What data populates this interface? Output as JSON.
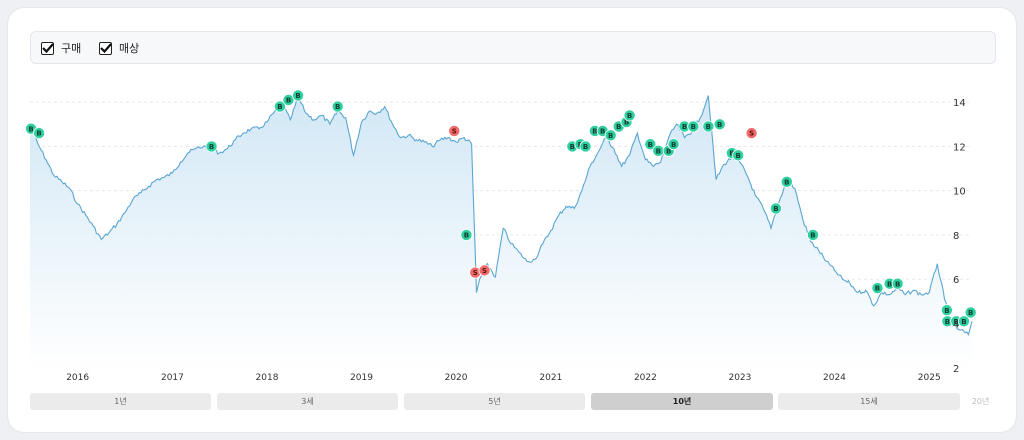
{
  "legend": {
    "items": [
      {
        "label": "구매",
        "checked": true
      },
      {
        "label": "매상",
        "checked": true
      }
    ]
  },
  "chart_data": {
    "type": "area",
    "x_range": [
      "2015-07-01",
      "2025-06-15"
    ],
    "ylim": [
      1.9,
      15.0
    ],
    "y_ticks": [
      2,
      4,
      6,
      8,
      10,
      12,
      14
    ],
    "x_tick_labels": [
      {
        "label": "2016",
        "date": "2016-01-01"
      },
      {
        "label": "2017",
        "date": "2017-01-01"
      },
      {
        "label": "2018",
        "date": "2018-01-01"
      },
      {
        "label": "2019",
        "date": "2019-01-01"
      },
      {
        "label": "2020",
        "date": "2020-01-01"
      },
      {
        "label": "2021",
        "date": "2021-01-01"
      },
      {
        "label": "2022",
        "date": "2022-01-01"
      },
      {
        "label": "2023",
        "date": "2023-01-01"
      },
      {
        "label": "2024",
        "date": "2024-01-01"
      },
      {
        "label": "2025",
        "date": "2025-01-01"
      }
    ],
    "grid": true,
    "series": [
      {
        "color": "#5aa6d2",
        "points": [
          [
            "2015-07-01",
            12.9
          ],
          [
            "2015-08-01",
            12.1
          ],
          [
            "2015-09-01",
            11.4
          ],
          [
            "2015-10-01",
            10.7
          ],
          [
            "2015-11-01",
            10.4
          ],
          [
            "2015-12-01",
            10.1
          ],
          [
            "2016-01-01",
            9.4
          ],
          [
            "2016-02-01",
            8.9
          ],
          [
            "2016-03-01",
            8.4
          ],
          [
            "2016-04-01",
            7.8
          ],
          [
            "2016-05-01",
            8.1
          ],
          [
            "2016-06-01",
            8.5
          ],
          [
            "2016-07-01",
            9.0
          ],
          [
            "2016-08-01",
            9.6
          ],
          [
            "2016-09-01",
            9.9
          ],
          [
            "2016-10-01",
            10.2
          ],
          [
            "2016-11-01",
            10.5
          ],
          [
            "2016-12-01",
            10.6
          ],
          [
            "2017-01-01",
            10.8
          ],
          [
            "2017-02-01",
            11.3
          ],
          [
            "2017-03-01",
            11.7
          ],
          [
            "2017-04-01",
            11.9
          ],
          [
            "2017-05-01",
            12.0
          ],
          [
            "2017-06-01",
            11.9
          ],
          [
            "2017-07-01",
            11.7
          ],
          [
            "2017-08-01",
            11.9
          ],
          [
            "2017-09-01",
            12.3
          ],
          [
            "2017-10-01",
            12.6
          ],
          [
            "2017-11-01",
            12.8
          ],
          [
            "2017-12-01",
            12.8
          ],
          [
            "2018-01-01",
            13.1
          ],
          [
            "2018-02-01",
            13.6
          ],
          [
            "2018-03-01",
            13.9
          ],
          [
            "2018-04-01",
            13.2
          ],
          [
            "2018-05-01",
            14.2
          ],
          [
            "2018-06-01",
            13.5
          ],
          [
            "2018-07-01",
            13.2
          ],
          [
            "2018-08-01",
            13.4
          ],
          [
            "2018-09-01",
            13.0
          ],
          [
            "2018-10-01",
            13.6
          ],
          [
            "2018-11-01",
            13.3
          ],
          [
            "2018-12-01",
            11.6
          ],
          [
            "2019-01-01",
            13.1
          ],
          [
            "2019-02-01",
            13.6
          ],
          [
            "2019-03-01",
            13.5
          ],
          [
            "2019-04-01",
            13.8
          ],
          [
            "2019-05-01",
            13.0
          ],
          [
            "2019-06-01",
            12.4
          ],
          [
            "2019-07-01",
            12.5
          ],
          [
            "2019-08-01",
            12.3
          ],
          [
            "2019-09-01",
            12.2
          ],
          [
            "2019-10-01",
            12.0
          ],
          [
            "2019-11-01",
            12.3
          ],
          [
            "2019-12-01",
            12.4
          ],
          [
            "2020-01-01",
            12.2
          ],
          [
            "2020-02-01",
            12.4
          ],
          [
            "2020-03-01",
            12.1
          ],
          [
            "2020-03-20",
            5.4
          ],
          [
            "2020-04-01",
            6.0
          ],
          [
            "2020-05-01",
            6.7
          ],
          [
            "2020-06-01",
            6.1
          ],
          [
            "2020-07-01",
            8.3
          ],
          [
            "2020-08-01",
            7.6
          ],
          [
            "2020-09-01",
            7.2
          ],
          [
            "2020-10-01",
            6.8
          ],
          [
            "2020-11-01",
            6.9
          ],
          [
            "2020-12-01",
            7.6
          ],
          [
            "2021-01-01",
            8.2
          ],
          [
            "2021-02-01",
            8.9
          ],
          [
            "2021-03-01",
            9.3
          ],
          [
            "2021-04-01",
            9.2
          ],
          [
            "2021-05-01",
            10.0
          ],
          [
            "2021-06-01",
            11.1
          ],
          [
            "2021-07-01",
            11.7
          ],
          [
            "2021-08-01",
            12.4
          ],
          [
            "2021-09-01",
            11.9
          ],
          [
            "2021-10-01",
            11.1
          ],
          [
            "2021-11-01",
            11.6
          ],
          [
            "2021-12-01",
            12.6
          ],
          [
            "2022-01-01",
            11.4
          ],
          [
            "2022-02-01",
            11.1
          ],
          [
            "2022-03-01",
            11.3
          ],
          [
            "2022-04-01",
            12.4
          ],
          [
            "2022-05-01",
            13.0
          ],
          [
            "2022-06-01",
            12.4
          ],
          [
            "2022-07-01",
            12.7
          ],
          [
            "2022-08-01",
            13.3
          ],
          [
            "2022-09-01",
            14.3
          ],
          [
            "2022-10-01",
            10.5
          ],
          [
            "2022-11-01",
            11.2
          ],
          [
            "2022-12-01",
            11.5
          ],
          [
            "2023-01-01",
            11.3
          ],
          [
            "2023-02-01",
            10.6
          ],
          [
            "2023-03-01",
            9.8
          ],
          [
            "2023-04-01",
            9.2
          ],
          [
            "2023-05-01",
            8.3
          ],
          [
            "2023-06-01",
            9.5
          ],
          [
            "2023-07-01",
            10.5
          ],
          [
            "2023-08-01",
            10.1
          ],
          [
            "2023-09-01",
            8.7
          ],
          [
            "2023-10-01",
            7.7
          ],
          [
            "2023-11-01",
            7.3
          ],
          [
            "2023-12-01",
            6.8
          ],
          [
            "2024-01-01",
            6.4
          ],
          [
            "2024-02-01",
            6.0
          ],
          [
            "2024-03-01",
            5.8
          ],
          [
            "2024-04-01",
            5.4
          ],
          [
            "2024-05-01",
            5.5
          ],
          [
            "2024-06-01",
            4.8
          ],
          [
            "2024-07-01",
            5.4
          ],
          [
            "2024-08-01",
            5.3
          ],
          [
            "2024-09-01",
            5.6
          ],
          [
            "2024-10-01",
            5.3
          ],
          [
            "2024-11-01",
            5.5
          ],
          [
            "2024-12-01",
            5.3
          ],
          [
            "2025-01-01",
            5.4
          ],
          [
            "2025-02-01",
            6.7
          ],
          [
            "2025-03-01",
            5.1
          ],
          [
            "2025-04-01",
            3.9
          ],
          [
            "2025-05-01",
            3.7
          ],
          [
            "2025-06-01",
            3.5
          ],
          [
            "2025-06-15",
            4.1
          ]
        ]
      }
    ],
    "trade_markers": [
      {
        "side": "buy",
        "date": "2015-07-05",
        "price": 12.8
      },
      {
        "side": "buy",
        "date": "2015-08-05",
        "price": 12.6
      },
      {
        "side": "buy",
        "date": "2017-06-01",
        "price": 12.0
      },
      {
        "side": "buy",
        "date": "2018-02-20",
        "price": 13.8
      },
      {
        "side": "buy",
        "date": "2018-03-25",
        "price": 14.1
      },
      {
        "side": "buy",
        "date": "2018-05-01",
        "price": 14.3
      },
      {
        "side": "buy",
        "date": "2018-10-01",
        "price": 13.8
      },
      {
        "side": "sell",
        "date": "2019-12-25",
        "price": 12.7
      },
      {
        "side": "buy",
        "date": "2020-02-10",
        "price": 8.0
      },
      {
        "side": "sell",
        "date": "2020-03-15",
        "price": 6.3
      },
      {
        "side": "sell",
        "date": "2020-04-20",
        "price": 6.4
      },
      {
        "side": "buy",
        "date": "2021-03-25",
        "price": 12.0
      },
      {
        "side": "buy",
        "date": "2021-04-25",
        "price": 12.1
      },
      {
        "side": "buy",
        "date": "2021-05-15",
        "price": 12.0
      },
      {
        "side": "buy",
        "date": "2021-06-20",
        "price": 12.7
      },
      {
        "side": "buy",
        "date": "2021-07-20",
        "price": 12.7
      },
      {
        "side": "buy",
        "date": "2021-08-20",
        "price": 12.5
      },
      {
        "side": "buy",
        "date": "2021-09-20",
        "price": 12.9
      },
      {
        "side": "buy",
        "date": "2021-10-20",
        "price": 13.1
      },
      {
        "side": "buy",
        "date": "2021-11-01",
        "price": 13.4
      },
      {
        "side": "buy",
        "date": "2022-01-20",
        "price": 12.1
      },
      {
        "side": "buy",
        "date": "2022-02-20",
        "price": 11.8
      },
      {
        "side": "buy",
        "date": "2022-04-01",
        "price": 11.8
      },
      {
        "side": "buy",
        "date": "2022-04-20",
        "price": 12.1
      },
      {
        "side": "buy",
        "date": "2022-06-01",
        "price": 12.9
      },
      {
        "side": "buy",
        "date": "2022-07-05",
        "price": 12.9
      },
      {
        "side": "buy",
        "date": "2022-09-01",
        "price": 12.9
      },
      {
        "side": "buy",
        "date": "2022-10-15",
        "price": 13.0
      },
      {
        "side": "buy",
        "date": "2022-12-01",
        "price": 11.7
      },
      {
        "side": "buy",
        "date": "2022-12-25",
        "price": 11.6
      },
      {
        "side": "sell",
        "date": "2023-02-15",
        "price": 12.6
      },
      {
        "side": "buy",
        "date": "2023-05-20",
        "price": 9.2
      },
      {
        "side": "buy",
        "date": "2023-07-01",
        "price": 10.4
      },
      {
        "side": "buy",
        "date": "2023-10-10",
        "price": 8.0
      },
      {
        "side": "buy",
        "date": "2024-06-15",
        "price": 5.6
      },
      {
        "side": "buy",
        "date": "2024-08-01",
        "price": 5.8
      },
      {
        "side": "buy",
        "date": "2024-09-01",
        "price": 5.8
      },
      {
        "side": "buy",
        "date": "2025-03-10",
        "price": 4.6
      },
      {
        "side": "buy",
        "date": "2025-03-12",
        "price": 4.1
      },
      {
        "side": "buy",
        "date": "2025-04-15",
        "price": 4.1
      },
      {
        "side": "buy",
        "date": "2025-05-15",
        "price": 4.1
      },
      {
        "side": "buy",
        "date": "2025-06-10",
        "price": 4.5
      }
    ]
  },
  "range_tabs": [
    {
      "label": "1년",
      "state": "normal"
    },
    {
      "label": "3세",
      "state": "normal"
    },
    {
      "label": "5년",
      "state": "normal"
    },
    {
      "label": "10년",
      "state": "active"
    },
    {
      "label": "15세",
      "state": "normal"
    },
    {
      "label": "20년",
      "state": "disabled"
    }
  ],
  "colors": {
    "line": "#5aa6d2",
    "area_top": "#cfe6f5",
    "buy": "#2fcf9f",
    "sell": "#f06b6b",
    "grid": "#e6e8ec"
  },
  "marker_text": {
    "buy": "B",
    "sell": "S"
  }
}
